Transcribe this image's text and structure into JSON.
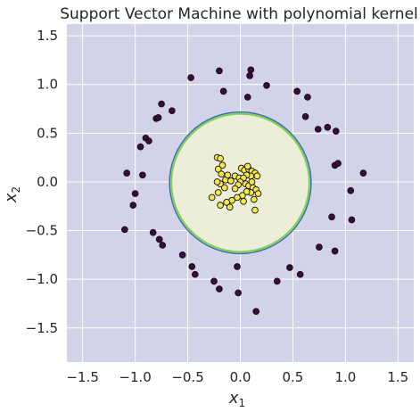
{
  "chart_data": {
    "type": "scatter",
    "title": "Support Vector Machine with polynomial kernel",
    "xlabel": "x",
    "xlabel_sub": "1",
    "ylabel": "x",
    "ylabel_sub": "2",
    "xlim": [
      -1.65,
      1.65
    ],
    "ylim": [
      -1.85,
      1.62
    ],
    "xticks": [
      -1.5,
      -1.0,
      -0.5,
      0.0,
      0.5,
      1.0,
      1.5
    ],
    "xtick_labels": [
      "−1.5",
      "−1.0",
      "−0.5",
      "0.0",
      "0.5",
      "1.0",
      "1.5"
    ],
    "yticks": [
      -1.5,
      -1.0,
      -0.5,
      0.0,
      0.5,
      1.0,
      1.5
    ],
    "ytick_labels": [
      "−1.5",
      "−1.0",
      "−0.5",
      "0.0",
      "0.5",
      "1.0",
      "1.5"
    ],
    "grid": true,
    "decision_boundary": {
      "shape": "circle",
      "center": [
        0.0,
        -0.01
      ],
      "radius": 0.69
    },
    "colors": {
      "outer_region": "#d2d3e8",
      "inner_region": "#edeed9",
      "boundary_outer": "#3b6fa8",
      "boundary_inner": "#7ed24f",
      "class0_point": "#3b0a3f",
      "class1_point": "#f5e74b",
      "point_edge": "#111111",
      "grid": "#ffffff"
    },
    "series": [
      {
        "points": [
          [
            -1.1,
            -0.49
          ],
          [
            -1.02,
            -0.24
          ],
          [
            -1.0,
            -0.12
          ],
          [
            -0.93,
            0.07
          ],
          [
            -1.08,
            0.09
          ],
          [
            -0.95,
            0.36
          ],
          [
            -0.9,
            0.45
          ],
          [
            -0.87,
            0.42
          ],
          [
            -0.8,
            0.65
          ],
          [
            -0.78,
            0.66
          ],
          [
            -0.75,
            0.8
          ],
          [
            -0.65,
            0.73
          ],
          [
            -0.47,
            1.07
          ],
          [
            -0.2,
            1.14
          ],
          [
            -0.16,
            0.93
          ],
          [
            0.1,
            1.15
          ],
          [
            0.09,
            1.09
          ],
          [
            0.07,
            0.87
          ],
          [
            0.25,
            0.99
          ],
          [
            0.54,
            0.93
          ],
          [
            0.64,
            0.87
          ],
          [
            0.62,
            0.67
          ],
          [
            0.74,
            0.54
          ],
          [
            0.83,
            0.56
          ],
          [
            0.91,
            0.52
          ],
          [
            0.9,
            0.17
          ],
          [
            0.93,
            0.19
          ],
          [
            1.17,
            0.09
          ],
          [
            1.05,
            -0.09
          ],
          [
            1.06,
            -0.39
          ],
          [
            0.87,
            -0.36
          ],
          [
            0.9,
            -0.71
          ],
          [
            0.75,
            -0.67
          ],
          [
            0.57,
            -0.95
          ],
          [
            0.47,
            -0.88
          ],
          [
            0.35,
            -1.02
          ],
          [
            0.15,
            -1.33
          ],
          [
            -0.03,
            -0.87
          ],
          [
            -0.02,
            -1.14
          ],
          [
            -0.2,
            -1.1
          ],
          [
            -0.25,
            -1.02
          ],
          [
            -0.43,
            -0.95
          ],
          [
            -0.46,
            -0.87
          ],
          [
            -0.55,
            -0.75
          ],
          [
            -0.74,
            -0.65
          ],
          [
            -0.77,
            -0.59
          ],
          [
            -0.83,
            -0.52
          ]
        ]
      },
      {
        "points": [
          [
            -0.22,
            0.25
          ],
          [
            -0.19,
            0.24
          ],
          [
            -0.17,
            0.17
          ],
          [
            -0.21,
            0.13
          ],
          [
            -0.18,
            0.08
          ],
          [
            -0.14,
            0.02
          ],
          [
            -0.09,
            0.01
          ],
          [
            -0.05,
            0.06
          ],
          [
            -0.01,
            0.04
          ],
          [
            0.01,
            0.14
          ],
          [
            0.04,
            0.12
          ],
          [
            0.08,
            0.13
          ],
          [
            0.11,
            0.11
          ],
          [
            0.14,
            0.09
          ],
          [
            0.16,
            0.06
          ],
          [
            0.1,
            0.06
          ],
          [
            0.06,
            0.07
          ],
          [
            0.03,
            0.04
          ],
          [
            0.0,
            0.0
          ],
          [
            -0.02,
            -0.03
          ],
          [
            0.05,
            -0.02
          ],
          [
            0.08,
            -0.04
          ],
          [
            0.12,
            -0.06
          ],
          [
            0.15,
            -0.08
          ],
          [
            0.17,
            -0.12
          ],
          [
            0.1,
            -0.11
          ],
          [
            0.06,
            -0.1
          ],
          [
            0.02,
            -0.14
          ],
          [
            -0.03,
            -0.16
          ],
          [
            -0.08,
            -0.19
          ],
          [
            -0.13,
            -0.21
          ],
          [
            -0.19,
            -0.24
          ],
          [
            -0.1,
            -0.26
          ],
          [
            -0.27,
            -0.16
          ],
          [
            -0.21,
            -0.11
          ],
          [
            -0.15,
            -0.06
          ],
          [
            -0.19,
            -0.02
          ],
          [
            -0.22,
            0.0
          ],
          [
            -0.12,
            0.07
          ],
          [
            0.13,
            -0.18
          ],
          [
            0.14,
            -0.29
          ],
          [
            0.03,
            -0.2
          ],
          [
            -0.05,
            -0.07
          ],
          [
            0.11,
            0.0
          ],
          [
            0.07,
            0.16
          ]
        ]
      }
    ]
  }
}
